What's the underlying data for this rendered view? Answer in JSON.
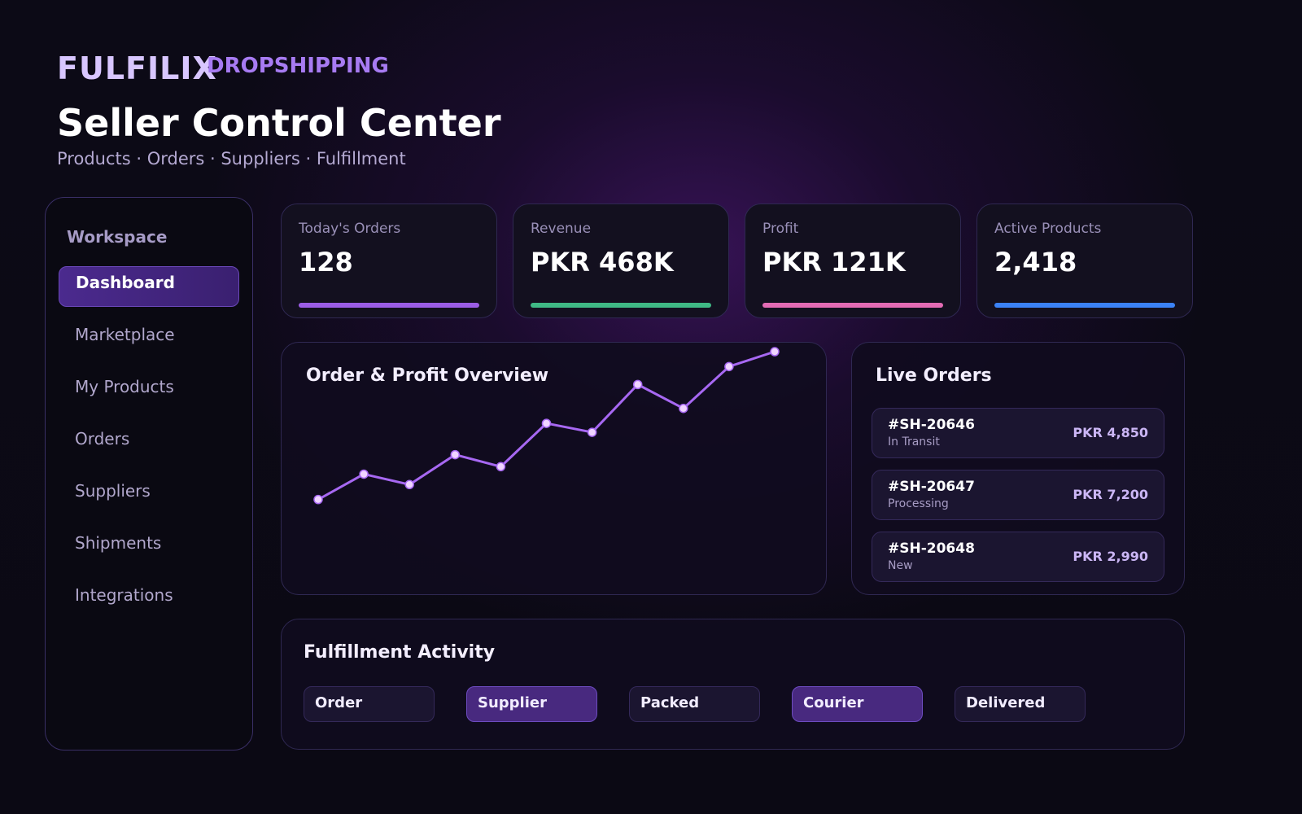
{
  "brand": {
    "name": "FULFILIX",
    "tagline": "DROPSHIPPING"
  },
  "header": {
    "title": "Seller Control Center",
    "subtitle": "Products · Orders · Suppliers · Fulfillment"
  },
  "sidebar": {
    "heading": "Workspace",
    "items": [
      {
        "label": "Dashboard",
        "active": true
      },
      {
        "label": "Marketplace",
        "active": false
      },
      {
        "label": "My Products",
        "active": false
      },
      {
        "label": "Orders",
        "active": false
      },
      {
        "label": "Suppliers",
        "active": false
      },
      {
        "label": "Shipments",
        "active": false
      },
      {
        "label": "Integrations",
        "active": false
      }
    ]
  },
  "kpis": [
    {
      "label": "Today's Orders",
      "value": "128",
      "color": "#9b5de5"
    },
    {
      "label": "Revenue",
      "value": "PKR 468K",
      "color": "#3fb985"
    },
    {
      "label": "Profit",
      "value": "PKR 121K",
      "color": "#e36bb4"
    },
    {
      "label": "Active Products",
      "value": "2,418",
      "color": "#3b82f6"
    }
  ],
  "overview": {
    "title": "Order & Profit Overview",
    "line_color": "#a768f2",
    "point_color": "#f0d4ff"
  },
  "chart_data": {
    "type": "line",
    "title": "Order & Profit Overview",
    "xlabel": "",
    "ylabel": "",
    "grid": false,
    "legend": "none",
    "x": [
      1,
      2,
      3,
      4,
      5,
      6,
      7,
      8,
      9,
      10,
      11
    ],
    "series": [
      {
        "values": [
          10,
          27,
          20,
          40,
          32,
          61,
          55,
          87,
          71,
          99,
          109
        ]
      }
    ],
    "ylim": [
      0,
      115
    ]
  },
  "live_orders": {
    "title": "Live Orders",
    "orders": [
      {
        "id": "#SH-20646",
        "status": "In Transit",
        "amount": "PKR 4,850"
      },
      {
        "id": "#SH-20647",
        "status": "Processing",
        "amount": "PKR 7,200"
      },
      {
        "id": "#SH-20648",
        "status": "New",
        "amount": "PKR 2,990"
      }
    ]
  },
  "activity": {
    "title": "Fulfillment Activity",
    "steps": [
      {
        "label": "Order",
        "highlight": false
      },
      {
        "label": "Supplier",
        "highlight": true
      },
      {
        "label": "Packed",
        "highlight": false
      },
      {
        "label": "Courier",
        "highlight": true
      },
      {
        "label": "Delivered",
        "highlight": false
      }
    ]
  }
}
